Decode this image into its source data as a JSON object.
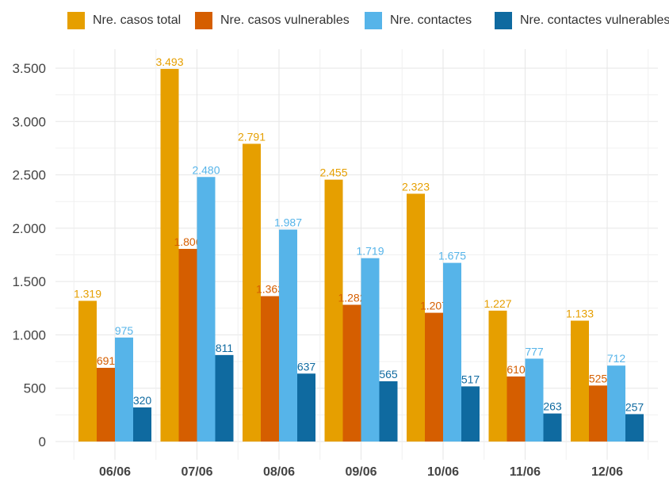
{
  "chart_data": {
    "type": "bar",
    "title": "",
    "xlabel": "",
    "ylabel": "",
    "categories": [
      "06/06",
      "07/06",
      "08/06",
      "09/06",
      "10/06",
      "11/06",
      "12/06"
    ],
    "ylim": [
      0,
      3600
    ],
    "yticks": [
      0,
      500,
      1000,
      1500,
      2000,
      2500,
      3000,
      3500
    ],
    "ytick_labels": [
      "0",
      "500",
      "1.000",
      "1.500",
      "2.000",
      "2.500",
      "3.000",
      "3.500"
    ],
    "grid": true,
    "legend_position": "top",
    "series": [
      {
        "name": "Nre. casos total",
        "color": "#E69F00",
        "values": [
          1319,
          3493,
          2791,
          2455,
          2323,
          1227,
          1133
        ],
        "labels": [
          "1.319",
          "3.493",
          "2.791",
          "2.455",
          "2.323",
          "1.227",
          "1.133"
        ]
      },
      {
        "name": "Nre. casos vulnerables",
        "color": "#D55E00",
        "values": [
          691,
          1806,
          1363,
          1282,
          1207,
          610,
          525
        ],
        "labels": [
          "691",
          "1.806",
          "1.363",
          "1.282",
          "1.207",
          "610",
          "525"
        ]
      },
      {
        "name": "Nre. contactes",
        "color": "#56B4E9",
        "values": [
          975,
          2480,
          1987,
          1719,
          1675,
          777,
          712
        ],
        "labels": [
          "975",
          "2.480",
          "1.987",
          "1.719",
          "1.675",
          "777",
          "712"
        ]
      },
      {
        "name": "Nre. contactes vulnerables",
        "color": "#0F6AA0",
        "values": [
          320,
          811,
          637,
          565,
          517,
          263,
          257
        ],
        "labels": [
          "320",
          "811",
          "637",
          "565",
          "517",
          "263",
          "257"
        ]
      }
    ]
  }
}
